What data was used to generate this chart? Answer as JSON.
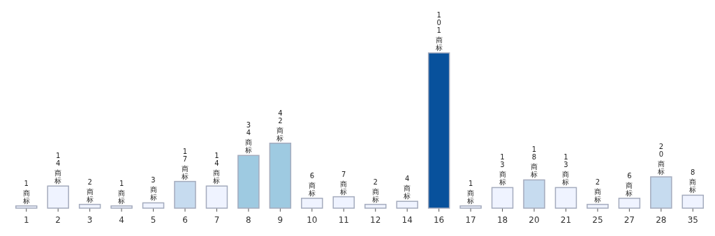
{
  "chart_data": {
    "type": "bar",
    "categories": [
      "1",
      "2",
      "3",
      "4",
      "5",
      "6",
      "7",
      "8",
      "9",
      "10",
      "11",
      "12",
      "14",
      "16",
      "17",
      "18",
      "20",
      "21",
      "25",
      "27",
      "28",
      "35"
    ],
    "values": [
      1,
      14,
      2,
      1,
      3,
      17,
      14,
      34,
      42,
      6,
      7,
      2,
      4,
      101,
      1,
      13,
      18,
      13,
      2,
      6,
      20,
      8
    ],
    "colors": [
      "#eff3ff",
      "#eff3ff",
      "#eff3ff",
      "#eff3ff",
      "#eff3ff",
      "#c6dbef",
      "#eff3ff",
      "#9ecae1",
      "#9ecae1",
      "#eff3ff",
      "#eff3ff",
      "#eff3ff",
      "#eff3ff",
      "#08519c",
      "#eff3ff",
      "#eff3ff",
      "#c6dbef",
      "#eff3ff",
      "#eff3ff",
      "#eff3ff",
      "#c6dbef",
      "#eff3ff"
    ],
    "value_labels": [
      "1 商标",
      "14 商标",
      "2 商标",
      "1 商标",
      "3 商标",
      "17 商标",
      "14 商标",
      "34 商标",
      "42 商标",
      "6 商标",
      "7 商标",
      "2 商标",
      "4 商标",
      "101 商标",
      "1 商标",
      "13 商标",
      "18 商标",
      "13 商标",
      "2 商标",
      "6 商标",
      "20 商标",
      "8 商标"
    ]
  }
}
